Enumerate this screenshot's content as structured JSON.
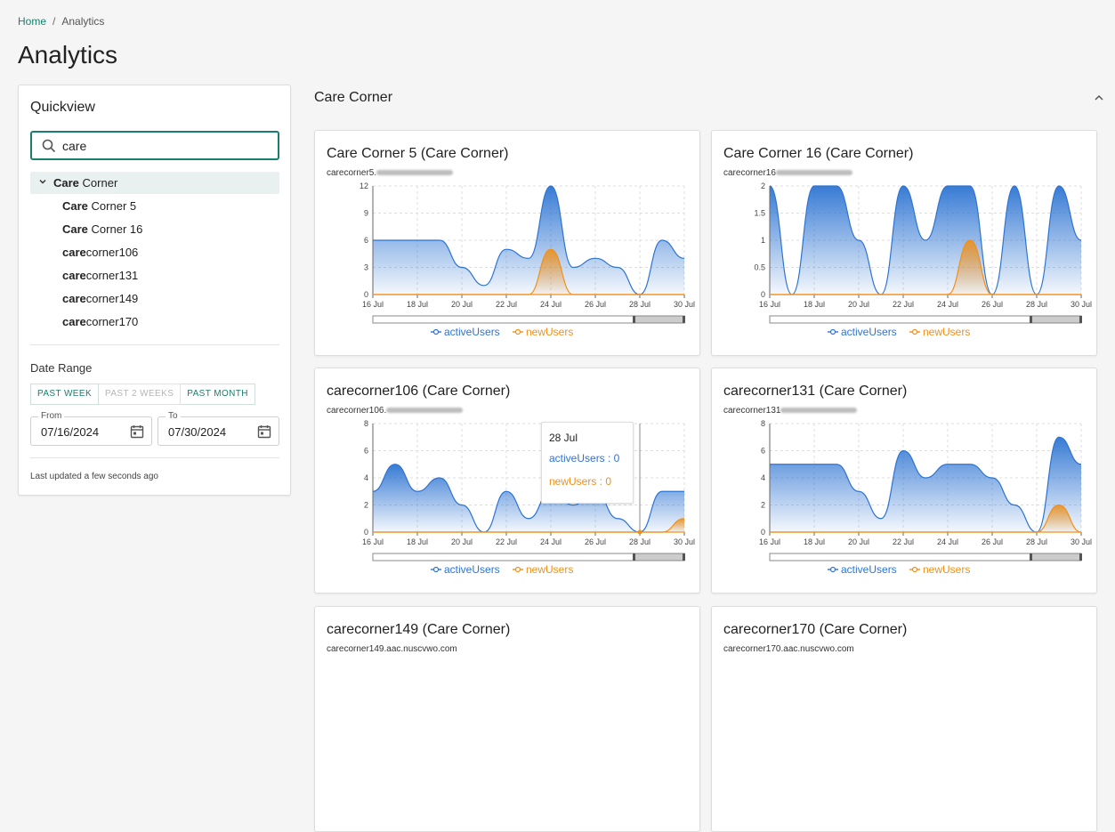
{
  "breadcrumb": {
    "home": "Home",
    "separator": "/",
    "current": "Analytics"
  },
  "page": {
    "title": "Analytics"
  },
  "quickview": {
    "title": "Quickview",
    "search_value": "care",
    "tree": {
      "parent": {
        "bold": "Care",
        "rest": " Corner"
      },
      "items": [
        {
          "bold": "Care",
          "rest": " Corner 5"
        },
        {
          "bold": "Care",
          "rest": " Corner 16"
        },
        {
          "bold": "care",
          "rest": "corner106"
        },
        {
          "bold": "care",
          "rest": "corner131"
        },
        {
          "bold": "care",
          "rest": "corner149"
        },
        {
          "bold": "care",
          "rest": "corner170"
        }
      ]
    },
    "date_range": {
      "label": "Date Range",
      "buttons": [
        "PAST WEEK",
        "PAST 2 WEEKS",
        "PAST MONTH"
      ],
      "from_label": "From",
      "from_value": "07/16/2024",
      "to_label": "To",
      "to_value": "07/30/2024"
    },
    "last_updated": "Last updated a few seconds ago"
  },
  "section": {
    "title": "Care Corner"
  },
  "colors": {
    "accent": "#17806d",
    "active_users": "#2d74d2",
    "new_users": "#f0901a"
  },
  "cards": [
    {
      "title": "Care Corner 5 (Care Corner)",
      "subtitle": "carecorner5."
    },
    {
      "title": "Care Corner 16 (Care Corner)",
      "subtitle": "carecorner16"
    },
    {
      "title": "carecorner106 (Care Corner)",
      "subtitle": "carecorner106."
    },
    {
      "title": "carecorner131 (Care Corner)",
      "subtitle": "carecorner131"
    },
    {
      "title": "carecorner149 (Care Corner)",
      "subtitle": "carecorner149.aac.nuscvwo.com"
    },
    {
      "title": "carecorner170 (Care Corner)",
      "subtitle": "carecorner170.aac.nuscvwo.com"
    }
  ],
  "tooltip": {
    "date": "28 Jul",
    "active": "activeUsers : 0",
    "new": "newUsers : 0"
  },
  "chart_data": [
    {
      "type": "area",
      "x": [
        "16 Jul",
        "17 Jul",
        "18 Jul",
        "19 Jul",
        "20 Jul",
        "21 Jul",
        "22 Jul",
        "23 Jul",
        "24 Jul",
        "25 Jul",
        "26 Jul",
        "27 Jul",
        "28 Jul",
        "29 Jul",
        "30 Jul"
      ],
      "xticks": [
        "16 Jul",
        "18 Jul",
        "20 Jul",
        "22 Jul",
        "24 Jul",
        "26 Jul",
        "28 Jul",
        "30 Jul"
      ],
      "yticks": [
        0,
        3,
        6,
        9,
        12
      ],
      "ylim": [
        0,
        12
      ],
      "series": [
        {
          "name": "activeUsers",
          "values": [
            6,
            6,
            6,
            6,
            3,
            1,
            5,
            4,
            12,
            3,
            4,
            3,
            0,
            6,
            4
          ]
        },
        {
          "name": "newUsers",
          "values": [
            0,
            0,
            0,
            0,
            0,
            0,
            0,
            0,
            5,
            0,
            0,
            0,
            0,
            0,
            0
          ]
        }
      ]
    },
    {
      "type": "area",
      "x": [
        "16 Jul",
        "17 Jul",
        "18 Jul",
        "19 Jul",
        "20 Jul",
        "21 Jul",
        "22 Jul",
        "23 Jul",
        "24 Jul",
        "25 Jul",
        "26 Jul",
        "27 Jul",
        "28 Jul",
        "29 Jul",
        "30 Jul"
      ],
      "xticks": [
        "16 Jul",
        "18 Jul",
        "20 Jul",
        "22 Jul",
        "24 Jul",
        "26 Jul",
        "28 Jul",
        "30 Jul"
      ],
      "yticks": [
        0,
        0.5,
        1,
        1.5,
        2
      ],
      "ylim": [
        0,
        2
      ],
      "series": [
        {
          "name": "activeUsers",
          "values": [
            2,
            0,
            2,
            2,
            1,
            0,
            2,
            1,
            2,
            2,
            0,
            2,
            0,
            2,
            1
          ]
        },
        {
          "name": "newUsers",
          "values": [
            0,
            0,
            0,
            0,
            0,
            0,
            0,
            0,
            0,
            1,
            0,
            0,
            0,
            0,
            0
          ]
        }
      ]
    },
    {
      "type": "area",
      "x": [
        "16 Jul",
        "17 Jul",
        "18 Jul",
        "19 Jul",
        "20 Jul",
        "21 Jul",
        "22 Jul",
        "23 Jul",
        "24 Jul",
        "25 Jul",
        "26 Jul",
        "27 Jul",
        "28 Jul",
        "29 Jul",
        "30 Jul"
      ],
      "xticks": [
        "16 Jul",
        "18 Jul",
        "20 Jul",
        "22 Jul",
        "24 Jul",
        "26 Jul",
        "28 Jul",
        "30 Jul"
      ],
      "yticks": [
        0,
        2,
        4,
        6,
        8
      ],
      "ylim": [
        0,
        8
      ],
      "series": [
        {
          "name": "activeUsers",
          "values": [
            3,
            5,
            3,
            4,
            2,
            0,
            3,
            1,
            3,
            2,
            3,
            1,
            0,
            3,
            3
          ]
        },
        {
          "name": "newUsers",
          "values": [
            0,
            0,
            0,
            0,
            0,
            0,
            0,
            0,
            0,
            0,
            0,
            0,
            0,
            0,
            1
          ]
        }
      ]
    },
    {
      "type": "area",
      "x": [
        "16 Jul",
        "17 Jul",
        "18 Jul",
        "19 Jul",
        "20 Jul",
        "21 Jul",
        "22 Jul",
        "23 Jul",
        "24 Jul",
        "25 Jul",
        "26 Jul",
        "27 Jul",
        "28 Jul",
        "29 Jul",
        "30 Jul"
      ],
      "xticks": [
        "16 Jul",
        "18 Jul",
        "20 Jul",
        "22 Jul",
        "24 Jul",
        "26 Jul",
        "28 Jul",
        "30 Jul"
      ],
      "yticks": [
        0,
        2,
        4,
        6,
        8
      ],
      "ylim": [
        0,
        8
      ],
      "series": [
        {
          "name": "activeUsers",
          "values": [
            5,
            5,
            5,
            5,
            3,
            1,
            6,
            4,
            5,
            5,
            4,
            2,
            0,
            7,
            5
          ]
        },
        {
          "name": "newUsers",
          "values": [
            0,
            0,
            0,
            0,
            0,
            0,
            0,
            0,
            0,
            0,
            0,
            0,
            0,
            2,
            0
          ]
        }
      ]
    }
  ]
}
